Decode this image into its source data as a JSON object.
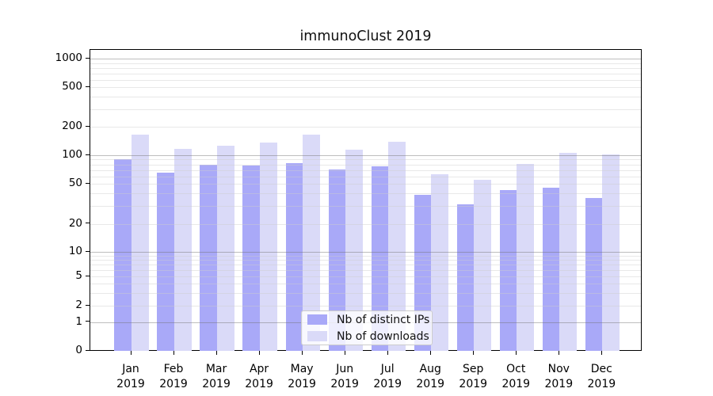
{
  "title": "immunoClust 2019",
  "legend": {
    "items": [
      {
        "label": "Nb of distinct IPs",
        "color": "#a9a9f8"
      },
      {
        "label": "Nb of downloads",
        "color": "#dadaf8"
      }
    ]
  },
  "y_axis": {
    "ticks": [
      "1000",
      "500",
      "200",
      "100",
      "50",
      "20",
      "10",
      "5",
      "2",
      "1",
      "0"
    ]
  },
  "x_axis": {
    "months": [
      "Jan",
      "Feb",
      "Mar",
      "Apr",
      "May",
      "Jun",
      "Jul",
      "Aug",
      "Sep",
      "Oct",
      "Nov",
      "Dec"
    ],
    "year": "2019"
  },
  "chart_data": {
    "type": "bar",
    "title": "immunoClust 2019",
    "categories": [
      "Jan 2019",
      "Feb 2019",
      "Mar 2019",
      "Apr 2019",
      "May 2019",
      "Jun 2019",
      "Jul 2019",
      "Aug 2019",
      "Sep 2019",
      "Oct 2019",
      "Nov 2019",
      "Dec 2019"
    ],
    "series": [
      {
        "name": "Nb of distinct IPs",
        "color": "#a9a9f8",
        "values": [
          90,
          65,
          80,
          78,
          82,
          71,
          76,
          39,
          31,
          43,
          46,
          36
        ]
      },
      {
        "name": "Nb of downloads",
        "color": "#dadaf8",
        "values": [
          166,
          117,
          127,
          136,
          165,
          114,
          138,
          63,
          55,
          81,
          105,
          102
        ]
      }
    ],
    "xlabel": "",
    "ylabel": "",
    "y_scale": "log-like (symlog with zero baseline)",
    "y_ticks": [
      0,
      1,
      2,
      5,
      10,
      20,
      50,
      100,
      200,
      500,
      1000
    ],
    "ylim": [
      0,
      1300
    ],
    "grid": "horizontal major (powers of 10) + faint log minors",
    "legend_position": "lower center"
  }
}
